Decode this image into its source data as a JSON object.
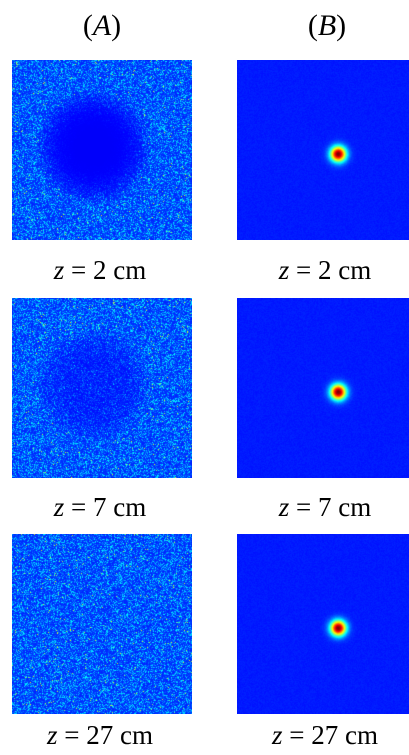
{
  "columns": [
    {
      "id": "A",
      "label": "A"
    },
    {
      "id": "B",
      "label": "B"
    }
  ],
  "rows": [
    {
      "z_value": "2",
      "unit": "cm",
      "speckle_hole": 1.0
    },
    {
      "z_value": "7",
      "unit": "cm",
      "speckle_hole": 0.55
    },
    {
      "z_value": "27",
      "unit": "cm",
      "speckle_hole": 0.0
    }
  ],
  "colors": {
    "field_dark": "#00008f",
    "field_mid": "#0a2ad8",
    "speckle_bright": "#00e0ff",
    "spot_core": "#b00000",
    "spot_ring": "#ffe000"
  }
}
